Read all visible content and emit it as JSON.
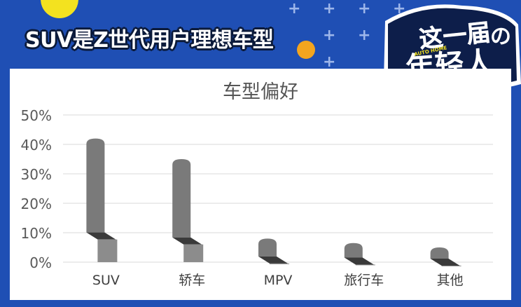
{
  "headline": "SUV是Z世代用户理想车型",
  "stamp": {
    "line1": "这一届",
    "line2": "年轻人",
    "logo": "AUTO HOME",
    "logo_char": "の"
  },
  "colors": {
    "background": "#1f4fb4",
    "accent_yellow": "#f3e21f",
    "bar": "#7a7a7a",
    "bar_top": "#8c8c8c",
    "bar_shadow": "#3a3a3a"
  },
  "chart_data": {
    "type": "bar",
    "title": "车型偏好",
    "categories": [
      "SUV",
      "轿车",
      "MPV",
      "旅行车",
      "其他"
    ],
    "series": [
      {
        "values": [
          42,
          35,
          8,
          6.5,
          5
        ]
      }
    ],
    "ylim": [
      0,
      50
    ],
    "yticks": [
      "0%",
      "10%",
      "20%",
      "30%",
      "40%",
      "50%"
    ],
    "xlabel": "",
    "ylabel": "",
    "grid": true
  },
  "footer": ""
}
